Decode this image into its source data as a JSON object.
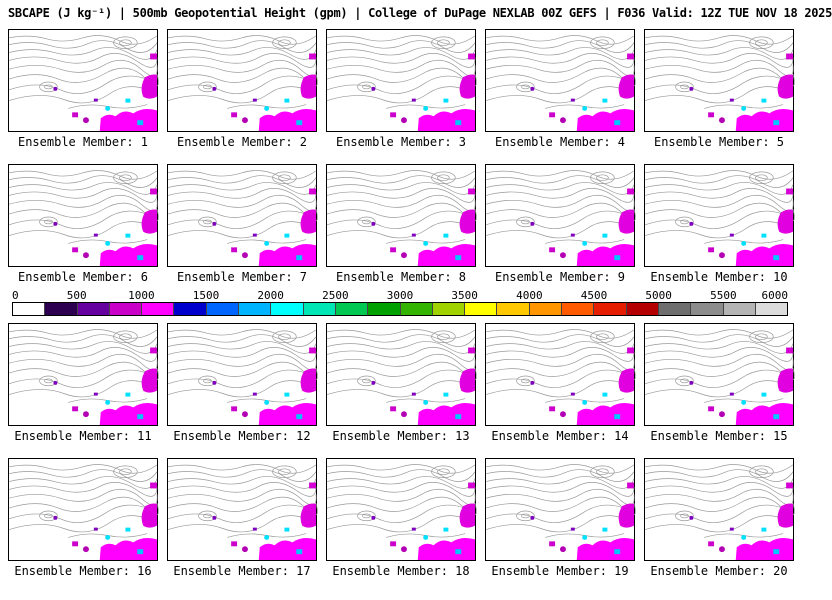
{
  "header": {
    "title": "SBCAPE (J kg⁻¹) | 500mb Geopotential Height (gpm) | College of DuPage NEXLAB 00Z GEFS | F036 Valid: 12Z TUE NOV 18 2025"
  },
  "panels": [
    {
      "label": "Ensemble Member: 1"
    },
    {
      "label": "Ensemble Member: 2"
    },
    {
      "label": "Ensemble Member: 3"
    },
    {
      "label": "Ensemble Member: 4"
    },
    {
      "label": "Ensemble Member: 5"
    },
    {
      "label": "Ensemble Member: 6"
    },
    {
      "label": "Ensemble Member: 7"
    },
    {
      "label": "Ensemble Member: 8"
    },
    {
      "label": "Ensemble Member: 9"
    },
    {
      "label": "Ensemble Member: 10"
    },
    {
      "label": "Ensemble Member: 11"
    },
    {
      "label": "Ensemble Member: 12"
    },
    {
      "label": "Ensemble Member: 13"
    },
    {
      "label": "Ensemble Member: 14"
    },
    {
      "label": "Ensemble Member: 15"
    },
    {
      "label": "Ensemble Member: 16"
    },
    {
      "label": "Ensemble Member: 17"
    },
    {
      "label": "Ensemble Member: 18"
    },
    {
      "label": "Ensemble Member: 19"
    },
    {
      "label": "Ensemble Member: 20"
    }
  ],
  "colorbar": {
    "ticks": [
      "0",
      "500",
      "1000",
      "1500",
      "2000",
      "2500",
      "3000",
      "3500",
      "4000",
      "4500",
      "5000",
      "5500",
      "6000"
    ],
    "colors": [
      "#ffffff",
      "#2d0052",
      "#66009e",
      "#c800c8",
      "#ff00ff",
      "#0000cd",
      "#0064ff",
      "#00b4ff",
      "#00ffff",
      "#00e6b4",
      "#00c850",
      "#00a000",
      "#32b400",
      "#a0d200",
      "#ffff00",
      "#ffc800",
      "#ff9600",
      "#ff5a00",
      "#e61e00",
      "#b40000",
      "#6e6e6e",
      "#8c8c8c",
      "#b4b4b4",
      "#dcdcdc"
    ]
  },
  "chart_data": {
    "type": "heatmap",
    "title": "SBCAPE (J kg⁻¹) | 500mb Geopotential Height (gpm)",
    "source_text": "College of DuPage NEXLAB",
    "model_run": "00Z GEFS",
    "forecast_hour": "F036",
    "valid_time": "12Z TUE NOV 18 2025",
    "panel_labels": [
      "Ensemble Member: 1",
      "Ensemble Member: 2",
      "Ensemble Member: 3",
      "Ensemble Member: 4",
      "Ensemble Member: 5",
      "Ensemble Member: 6",
      "Ensemble Member: 7",
      "Ensemble Member: 8",
      "Ensemble Member: 9",
      "Ensemble Member: 10",
      "Ensemble Member: 11",
      "Ensemble Member: 12",
      "Ensemble Member: 13",
      "Ensemble Member: 14",
      "Ensemble Member: 15",
      "Ensemble Member: 16",
      "Ensemble Member: 17",
      "Ensemble Member: 18",
      "Ensemble Member: 19",
      "Ensemble Member: 20"
    ],
    "colorbar_scale": {
      "units": "J kg⁻¹",
      "min": 0,
      "max": 6000,
      "tick_step": 500,
      "ticks": [
        0,
        500,
        1000,
        1500,
        2000,
        2500,
        3000,
        3500,
        4000,
        4500,
        5000,
        5500,
        6000
      ]
    },
    "layout": {
      "rows": 4,
      "cols": 5,
      "colorbar_position": "between row 2 and row 3"
    }
  }
}
